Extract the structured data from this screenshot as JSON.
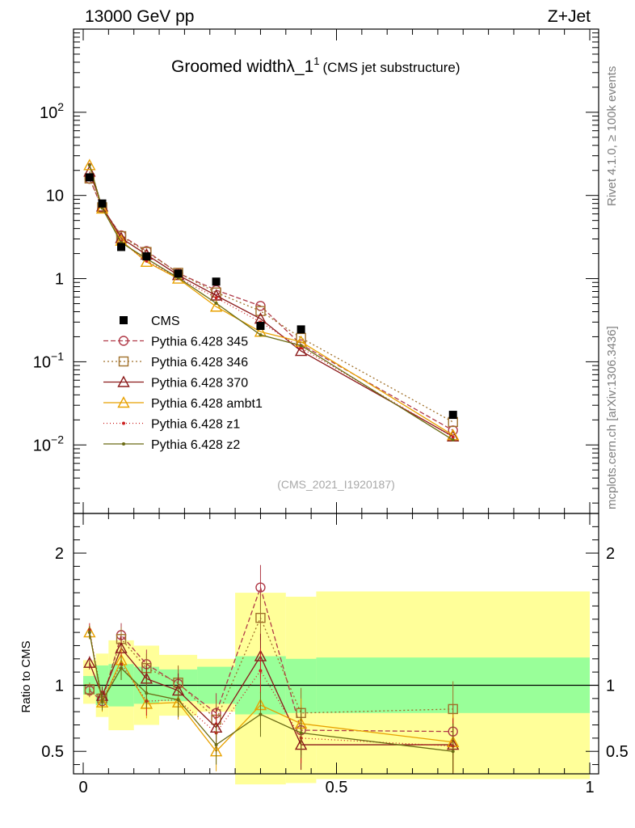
{
  "header": {
    "energy": "13000 GeV pp",
    "process": "Z+Jet"
  },
  "side": {
    "rivet": "Rivet 4.1.0, ≥ 100k events",
    "mcplots": "mcplots.cern.ch [arXiv:1306.3436]"
  },
  "chart_data": {
    "type": "line",
    "title": "Groomed widthλ_1",
    "title_sup": "1",
    "title_suffix": "(CMS jet substructure)",
    "watermark": "(CMS_2021_I1920187)",
    "xlim": [
      0,
      1
    ],
    "upper": {
      "yscale": "log",
      "ylim": [
        0.0015,
        1000
      ],
      "y_ticks": [
        {
          "value": 100,
          "base": "10",
          "exp": "2"
        },
        {
          "value": 10,
          "base": "10",
          "exp": ""
        },
        {
          "value": 1,
          "base": "1",
          "exp": ""
        },
        {
          "value": 0.1,
          "base": "10",
          "exp": "−1"
        },
        {
          "value": 0.01,
          "base": "10",
          "exp": "−2"
        }
      ]
    },
    "lower": {
      "ylabel": "Ratio to CMS",
      "ylim": [
        0.33,
        2.3
      ],
      "y_ticks": [
        {
          "value": 2,
          "label": "2"
        },
        {
          "value": 1,
          "label": "1"
        },
        {
          "value": 0.5,
          "label": "0.5"
        }
      ],
      "x_ticks": [
        {
          "value": 0,
          "label": "0"
        },
        {
          "value": 0.5,
          "label": "0.5"
        },
        {
          "value": 1,
          "label": "1"
        }
      ],
      "band_edges": [
        0,
        0.025,
        0.05,
        0.1,
        0.15,
        0.225,
        0.3,
        0.4,
        0.46,
        1.0
      ],
      "yellow_band": [
        [
          0.86,
          1.19
        ],
        [
          0.76,
          1.24
        ],
        [
          0.66,
          1.34
        ],
        [
          0.7,
          1.3
        ],
        [
          0.77,
          1.23
        ],
        [
          0.8,
          1.2
        ],
        [
          0.25,
          1.7
        ],
        [
          0.26,
          1.67
        ],
        [
          0.29,
          1.71
        ]
      ],
      "green_band": [
        [
          0.93,
          1.07
        ],
        [
          0.85,
          1.15
        ],
        [
          0.84,
          1.16
        ],
        [
          0.86,
          1.14
        ],
        [
          0.88,
          1.12
        ],
        [
          0.86,
          1.14
        ],
        [
          0.78,
          1.22
        ],
        [
          0.79,
          1.2
        ],
        [
          0.79,
          1.21
        ]
      ]
    },
    "x": [
      0.0125,
      0.0375,
      0.075,
      0.125,
      0.1875,
      0.2625,
      0.35,
      0.43,
      0.73
    ],
    "cms": [
      16.5,
      8.0,
      2.4,
      1.85,
      1.15,
      0.92,
      0.27,
      0.245,
      0.023
    ],
    "series": [
      {
        "name": "Pythia 6.428 345",
        "color": "#b03a48",
        "marker": "circle",
        "dash": "6,3",
        "ratio": [
          0.96,
          0.88,
          1.38,
          1.16,
          1.01,
          0.79,
          1.74,
          0.66,
          0.65
        ]
      },
      {
        "name": "Pythia 6.428 346",
        "color": "#a0702a",
        "marker": "square",
        "dash": "2,3",
        "ratio": [
          0.97,
          0.9,
          1.35,
          1.13,
          1.02,
          0.74,
          1.51,
          0.79,
          0.82
        ]
      },
      {
        "name": "Pythia 6.428 370",
        "color": "#8b1a1a",
        "marker": "triangle",
        "dash": "",
        "ratio": [
          1.17,
          0.92,
          1.28,
          1.05,
          0.96,
          0.68,
          1.22,
          0.55,
          0.55
        ]
      },
      {
        "name": "Pythia 6.428 ambt1",
        "color": "#e8a100",
        "marker": "triangle",
        "dash": "",
        "ratio": [
          1.4,
          0.87,
          1.19,
          0.86,
          0.87,
          0.5,
          0.85,
          0.71,
          0.57
        ]
      },
      {
        "name": "Pythia 6.428 z1",
        "color": "#cc2020",
        "marker": "dot",
        "dash": "1,3",
        "ratio": [
          1.42,
          0.89,
          1.16,
          0.88,
          0.89,
          0.64,
          1.11,
          0.6,
          0.54
        ]
      },
      {
        "name": "Pythia 6.428 z2",
        "color": "#6b6b14",
        "marker": "dot",
        "dash": "",
        "ratio": [
          1.4,
          0.88,
          1.13,
          0.94,
          0.89,
          0.55,
          0.78,
          0.64,
          0.5
        ]
      }
    ],
    "legend_cms": "CMS"
  }
}
